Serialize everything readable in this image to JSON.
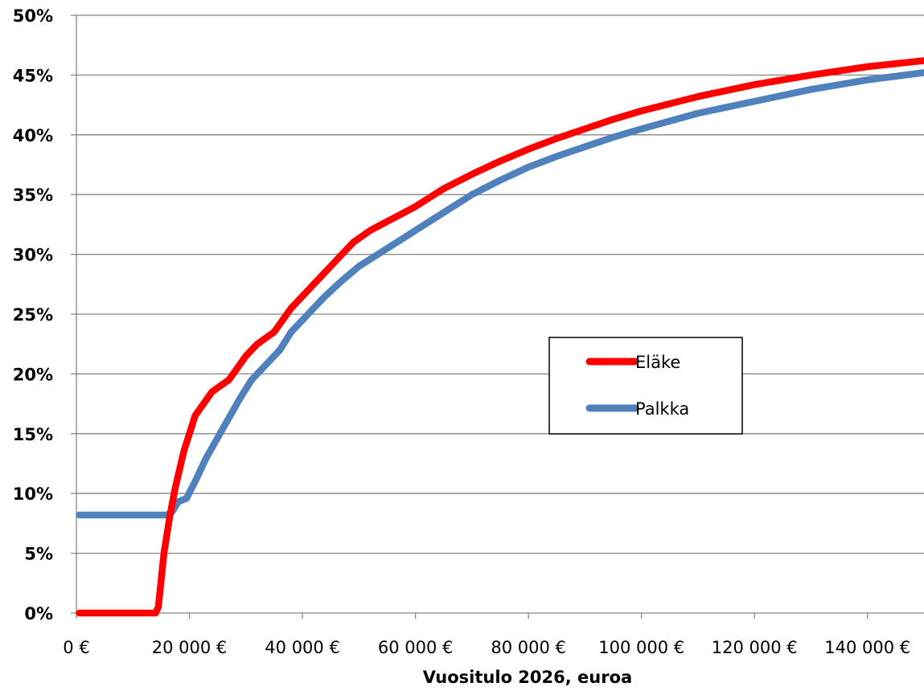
{
  "chart_data": {
    "type": "line",
    "title": "",
    "xlabel": "Vuositulo 2026, euroa",
    "ylabel": "",
    "xlim": [
      0,
      150000
    ],
    "ylim": [
      0,
      50
    ],
    "grid": "horizontal",
    "legend_position": "center-right",
    "x_ticks": [
      0,
      20000,
      40000,
      60000,
      80000,
      100000,
      120000,
      140000
    ],
    "x_tick_labels": [
      "0 €",
      "20 000 €",
      "40 000 €",
      "60 000 €",
      "80 000 €",
      "100 000 €",
      "120 000 €",
      "140 000 €"
    ],
    "y_ticks": [
      0,
      5,
      10,
      15,
      20,
      25,
      30,
      35,
      40,
      45,
      50
    ],
    "y_tick_labels": [
      "0%",
      "5%",
      "10%",
      "15%",
      "20%",
      "25%",
      "30%",
      "35%",
      "40%",
      "45%",
      "50%"
    ],
    "series": [
      {
        "name": "Eläke",
        "color": "#ff0000",
        "points": [
          [
            500,
            0
          ],
          [
            14000,
            0
          ],
          [
            14500,
            0.5
          ],
          [
            15500,
            5
          ],
          [
            16500,
            8
          ],
          [
            17500,
            10.5
          ],
          [
            19000,
            13.5
          ],
          [
            21000,
            16.5
          ],
          [
            24000,
            18.5
          ],
          [
            27000,
            19.5
          ],
          [
            30000,
            21.5
          ],
          [
            32000,
            22.5
          ],
          [
            35000,
            23.5
          ],
          [
            38000,
            25.5
          ],
          [
            42000,
            27.5
          ],
          [
            46000,
            29.5
          ],
          [
            49000,
            31
          ],
          [
            52000,
            32
          ],
          [
            56000,
            33
          ],
          [
            60000,
            34
          ],
          [
            65000,
            35.5
          ],
          [
            70000,
            36.7
          ],
          [
            75000,
            37.8
          ],
          [
            80000,
            38.8
          ],
          [
            85000,
            39.7
          ],
          [
            90000,
            40.5
          ],
          [
            95000,
            41.3
          ],
          [
            100000,
            42
          ],
          [
            110000,
            43.2
          ],
          [
            120000,
            44.2
          ],
          [
            130000,
            45
          ],
          [
            140000,
            45.7
          ],
          [
            150000,
            46.2
          ]
        ]
      },
      {
        "name": "Palkka",
        "color": "#4f81bd",
        "points": [
          [
            500,
            8.2
          ],
          [
            16000,
            8.2
          ],
          [
            17000,
            8.5
          ],
          [
            18000,
            9.3
          ],
          [
            19500,
            9.6
          ],
          [
            21000,
            11
          ],
          [
            23000,
            13
          ],
          [
            26000,
            15.5
          ],
          [
            29000,
            18
          ],
          [
            31000,
            19.5
          ],
          [
            33000,
            20.5
          ],
          [
            36000,
            22
          ],
          [
            38000,
            23.5
          ],
          [
            41000,
            25
          ],
          [
            44000,
            26.5
          ],
          [
            47000,
            27.8
          ],
          [
            50000,
            29
          ],
          [
            55000,
            30.5
          ],
          [
            60000,
            32
          ],
          [
            65000,
            33.5
          ],
          [
            70000,
            35
          ],
          [
            75000,
            36.2
          ],
          [
            80000,
            37.3
          ],
          [
            85000,
            38.2
          ],
          [
            90000,
            39
          ],
          [
            95000,
            39.8
          ],
          [
            100000,
            40.5
          ],
          [
            110000,
            41.8
          ],
          [
            120000,
            42.8
          ],
          [
            130000,
            43.8
          ],
          [
            140000,
            44.6
          ],
          [
            150000,
            45.2
          ]
        ]
      }
    ]
  }
}
